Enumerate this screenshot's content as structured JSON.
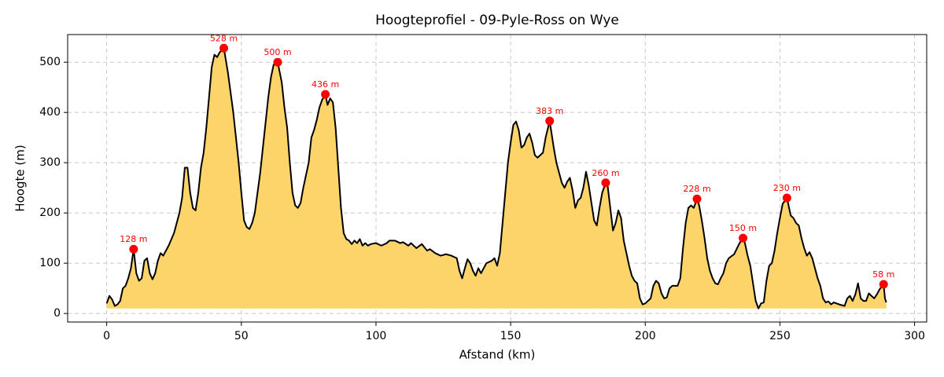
{
  "chart_data": {
    "type": "area",
    "title": "Hoogteprofiel - 09-Pyle-Ross on Wye",
    "x_label": "Afstand (km)",
    "y_label": "Hoogte (m)",
    "xlim": [
      -14.5,
      304.5
    ],
    "ylim": [
      -17,
      555
    ],
    "xticks": [
      0,
      50,
      100,
      150,
      200,
      250,
      300
    ],
    "yticks": [
      0,
      100,
      200,
      300,
      400,
      500
    ],
    "grid": true,
    "color": "#000000",
    "fill_color": "#fcd46a",
    "x": [
      0,
      1,
      2,
      3,
      4,
      5,
      6,
      7,
      8,
      9,
      10,
      11,
      12,
      13,
      14,
      15,
      16,
      17,
      18,
      19,
      20,
      21,
      23,
      25,
      27,
      28,
      29,
      30,
      31,
      32,
      33,
      34,
      35,
      36,
      37,
      38,
      39,
      40,
      41,
      42,
      43.5,
      45,
      46,
      47,
      48,
      49,
      50,
      51,
      52,
      53,
      54,
      55,
      56,
      57,
      58,
      59,
      60,
      61,
      62,
      63.5,
      65,
      66,
      67,
      68,
      69,
      70,
      71,
      72,
      73,
      74,
      75,
      76,
      77,
      78,
      79,
      80,
      81.2,
      82,
      83,
      84,
      85,
      86,
      87,
      88,
      89,
      90,
      91,
      92,
      93,
      94,
      95,
      96,
      97,
      98,
      100,
      102,
      104,
      105,
      107,
      109,
      110,
      112,
      113,
      115,
      117,
      119,
      120,
      122,
      124,
      126,
      128,
      130,
      131,
      132,
      133,
      134,
      135,
      136,
      137,
      138,
      139,
      140,
      141,
      143,
      144,
      145,
      146,
      147,
      148,
      149,
      150,
      151,
      152,
      153,
      154,
      155,
      156,
      157,
      158,
      159,
      160,
      162,
      163,
      164.5,
      166,
      167,
      168,
      169,
      170,
      171,
      172,
      173,
      174,
      175,
      176,
      177,
      178,
      179,
      180,
      181,
      182,
      183,
      184,
      185.3,
      186,
      187,
      188,
      189,
      190,
      191,
      192,
      193,
      194,
      195,
      196,
      197,
      198,
      199,
      200,
      202,
      203,
      204,
      205,
      206,
      207,
      208,
      209,
      210,
      212,
      213,
      214,
      215,
      216,
      217,
      218,
      219.2,
      220,
      221,
      222,
      223,
      224,
      225,
      226,
      227,
      228,
      229,
      230,
      231,
      233,
      235,
      236.3,
      237,
      238,
      239,
      240,
      241,
      242,
      243,
      244,
      245,
      246,
      247,
      248,
      249,
      250,
      251,
      252.6,
      254,
      255,
      256,
      257,
      258,
      259,
      260,
      261,
      262,
      263,
      264,
      265,
      266,
      267,
      268,
      269,
      270,
      272,
      274,
      275,
      276,
      277,
      278,
      279,
      280,
      281,
      282,
      283,
      284,
      285,
      286,
      287,
      288.5,
      289,
      289.5
    ],
    "values": [
      20,
      35,
      28,
      15,
      18,
      25,
      50,
      55,
      70,
      90,
      128,
      80,
      65,
      70,
      105,
      110,
      80,
      68,
      80,
      105,
      120,
      115,
      135,
      160,
      200,
      230,
      290,
      290,
      240,
      210,
      205,
      240,
      290,
      320,
      370,
      430,
      490,
      515,
      510,
      520,
      528,
      480,
      440,
      400,
      350,
      300,
      240,
      185,
      172,
      168,
      180,
      200,
      240,
      280,
      330,
      380,
      430,
      470,
      495,
      500,
      460,
      410,
      370,
      300,
      240,
      215,
      210,
      220,
      250,
      275,
      300,
      350,
      365,
      385,
      410,
      425,
      436,
      415,
      428,
      420,
      370,
      290,
      210,
      160,
      148,
      145,
      138,
      145,
      140,
      148,
      135,
      140,
      135,
      138,
      140,
      135,
      140,
      145,
      145,
      140,
      142,
      135,
      140,
      130,
      138,
      125,
      128,
      120,
      115,
      118,
      115,
      110,
      85,
      70,
      90,
      108,
      100,
      85,
      75,
      90,
      80,
      90,
      100,
      105,
      110,
      95,
      120,
      180,
      240,
      300,
      340,
      375,
      382,
      365,
      330,
      335,
      350,
      358,
      340,
      315,
      310,
      320,
      350,
      383,
      330,
      300,
      280,
      260,
      250,
      262,
      270,
      245,
      210,
      225,
      230,
      250,
      282,
      255,
      220,
      185,
      175,
      210,
      240,
      260,
      255,
      210,
      165,
      180,
      205,
      190,
      145,
      120,
      95,
      75,
      65,
      60,
      30,
      18,
      20,
      30,
      55,
      65,
      60,
      40,
      30,
      32,
      50,
      55,
      55,
      70,
      130,
      180,
      210,
      215,
      210,
      228,
      215,
      185,
      150,
      110,
      85,
      70,
      60,
      58,
      70,
      80,
      100,
      110,
      118,
      140,
      150,
      140,
      115,
      95,
      60,
      25,
      10,
      20,
      22,
      65,
      95,
      100,
      125,
      160,
      190,
      218,
      230,
      195,
      190,
      180,
      175,
      150,
      130,
      115,
      122,
      110,
      90,
      70,
      55,
      30,
      22,
      24,
      18,
      22,
      18,
      15,
      30,
      35,
      25,
      38,
      60,
      30,
      25,
      25,
      40,
      35,
      30,
      38,
      48,
      58,
      30,
      22
    ],
    "markers": {
      "color": "#ff0000",
      "x": [
        10,
        43.5,
        63.5,
        81.2,
        164.5,
        185.3,
        219.2,
        236.3,
        252.6,
        288.5
      ],
      "values": [
        128,
        528,
        500,
        436,
        383,
        260,
        228,
        150,
        230,
        58
      ],
      "value_labels": [
        "128 m",
        "528 m",
        "500 m",
        "436 m",
        "383 m",
        "260 m",
        "228 m",
        "150 m",
        "230 m",
        "58 m"
      ]
    }
  }
}
